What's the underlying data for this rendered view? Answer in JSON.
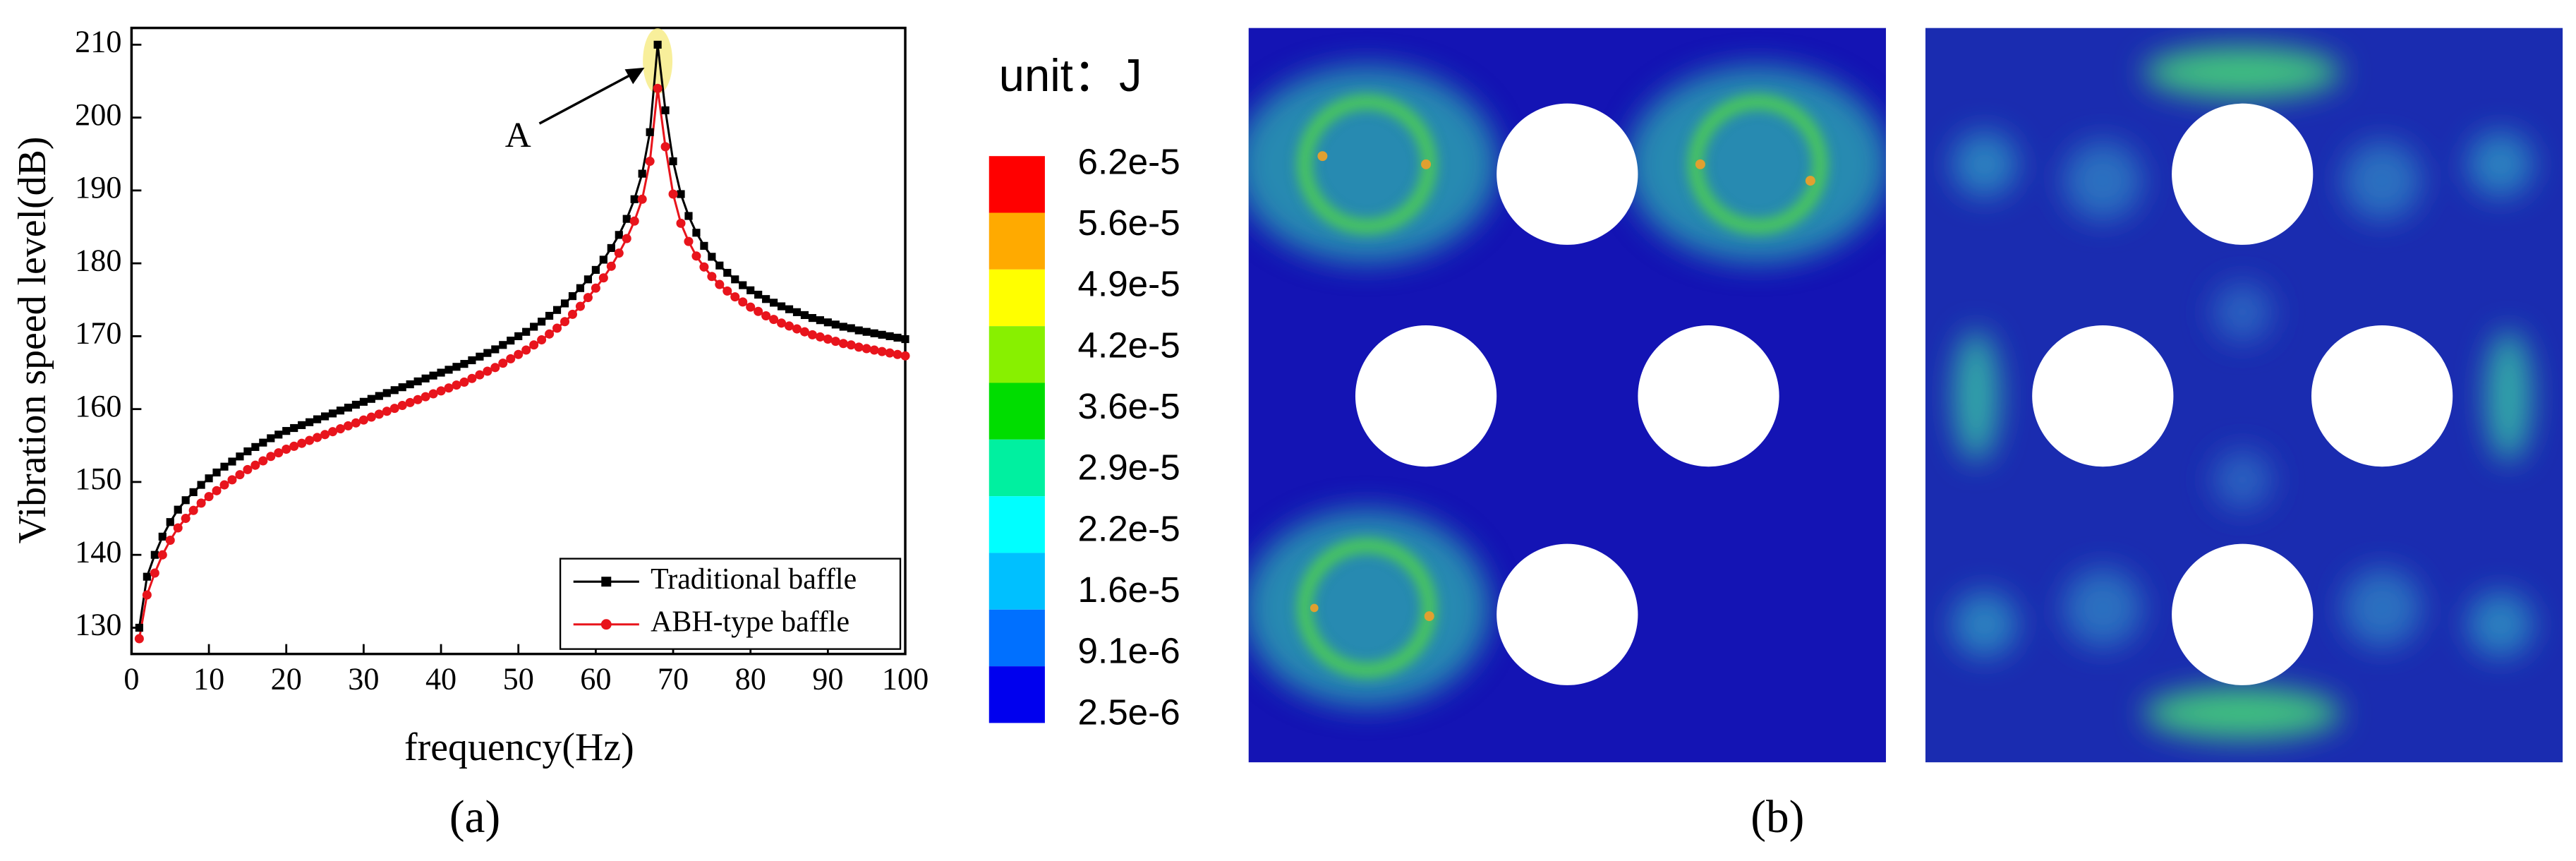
{
  "chart_data": {
    "type": "line",
    "x": [
      1,
      2,
      3,
      4,
      5,
      6,
      7,
      8,
      9,
      10,
      11,
      12,
      13,
      14,
      15,
      16,
      17,
      18,
      19,
      20,
      21,
      22,
      23,
      24,
      25,
      26,
      27,
      28,
      29,
      30,
      31,
      32,
      33,
      34,
      35,
      36,
      37,
      38,
      39,
      40,
      41,
      42,
      43,
      44,
      45,
      46,
      47,
      48,
      49,
      50,
      51,
      52,
      53,
      54,
      55,
      56,
      57,
      58,
      59,
      60,
      61,
      62,
      63,
      64,
      65,
      66,
      67,
      68,
      69,
      70,
      71,
      72,
      73,
      74,
      75,
      76,
      77,
      78,
      79,
      80,
      81,
      82,
      83,
      84,
      85,
      86,
      87,
      88,
      89,
      90,
      91,
      92,
      93,
      94,
      95,
      96,
      97,
      98,
      99,
      100
    ],
    "series": [
      {
        "name": "Traditional baffle",
        "color": "#000000",
        "marker": "square",
        "values": [
          130,
          137,
          140,
          142.5,
          144.5,
          146.2,
          147.5,
          148.6,
          149.6,
          150.5,
          151.3,
          152.1,
          152.8,
          153.5,
          154.2,
          154.8,
          155.4,
          156,
          156.5,
          157,
          157.4,
          157.8,
          158.2,
          158.6,
          159,
          159.4,
          159.8,
          160.2,
          160.6,
          161,
          161.4,
          161.8,
          162.2,
          162.6,
          163,
          163.4,
          163.8,
          164.2,
          164.6,
          165,
          165.4,
          165.8,
          166.2,
          166.7,
          167.2,
          167.7,
          168.2,
          168.8,
          169.4,
          170,
          170.6,
          171.3,
          172,
          172.8,
          173.6,
          174.5,
          175.5,
          176.6,
          177.8,
          179.1,
          180.5,
          182.1,
          183.9,
          186.1,
          188.8,
          192.3,
          198,
          210,
          201,
          194,
          189.5,
          186.5,
          184.2,
          182.4,
          180.9,
          179.7,
          178.7,
          177.8,
          177,
          176.3,
          175.7,
          175.1,
          174.6,
          174.1,
          173.7,
          173.3,
          172.9,
          172.5,
          172.2,
          171.9,
          171.6,
          171.3,
          171.1,
          170.8,
          170.6,
          170.4,
          170.2,
          170,
          169.8,
          169.6
        ]
      },
      {
        "name": "ABH-type baffle",
        "color": "#e8141c",
        "marker": "circle",
        "values": [
          128.5,
          134.5,
          137.5,
          140,
          142,
          143.7,
          145,
          146.1,
          147.1,
          148,
          148.8,
          149.6,
          150.3,
          151,
          151.7,
          152.3,
          152.9,
          153.5,
          154,
          154.5,
          154.9,
          155.3,
          155.7,
          156.1,
          156.5,
          156.9,
          157.3,
          157.7,
          158.1,
          158.5,
          158.9,
          159.3,
          159.7,
          160.1,
          160.5,
          160.9,
          161.3,
          161.7,
          162.1,
          162.5,
          162.9,
          163.3,
          163.7,
          164.2,
          164.7,
          165.2,
          165.7,
          166.3,
          166.9,
          167.5,
          168.1,
          168.8,
          169.5,
          170.3,
          171.1,
          172,
          173,
          174.1,
          175.3,
          176.6,
          178,
          179.6,
          181.4,
          183.4,
          185.8,
          188.8,
          194,
          204,
          196,
          189.5,
          185.5,
          183,
          181,
          179.5,
          178.2,
          177.1,
          176.2,
          175.4,
          174.7,
          174,
          173.4,
          172.8,
          172.3,
          171.8,
          171.4,
          171,
          170.6,
          170.2,
          169.9,
          169.6,
          169.3,
          169,
          168.8,
          168.5,
          168.3,
          168.1,
          167.9,
          167.7,
          167.5,
          167.3
        ]
      }
    ],
    "xlabel": "frequency(Hz)",
    "ylabel": "Vibration speed level(dB)",
    "xlim": [
      0,
      100
    ],
    "ylim": [
      126.4,
      212.3
    ],
    "xticks": [
      0,
      10,
      20,
      30,
      40,
      50,
      60,
      70,
      80,
      90,
      100
    ],
    "yticks": [
      130,
      140,
      150,
      160,
      170,
      180,
      190,
      200,
      210
    ],
    "annotations": [
      {
        "text": "A",
        "x": 68,
        "y": 210
      }
    ],
    "legend": "lower right"
  },
  "panel_labels": [
    "(a)",
    "(b)"
  ],
  "colorbar": {
    "title": "unit：J",
    "labels": [
      "6.2e-5",
      "5.6e-5",
      "4.9e-5",
      "4.2e-5",
      "3.6e-5",
      "2.9e-5",
      "2.2e-5",
      "1.6e-5",
      "9.1e-6",
      "2.5e-6"
    ],
    "colors": [
      "#ff0000",
      "#ffaa00",
      "#ffff00",
      "#88f000",
      "#00dd00",
      "#00f0a0",
      "#00ffff",
      "#00c0ff",
      "#0070ff",
      "#0000ee"
    ]
  }
}
